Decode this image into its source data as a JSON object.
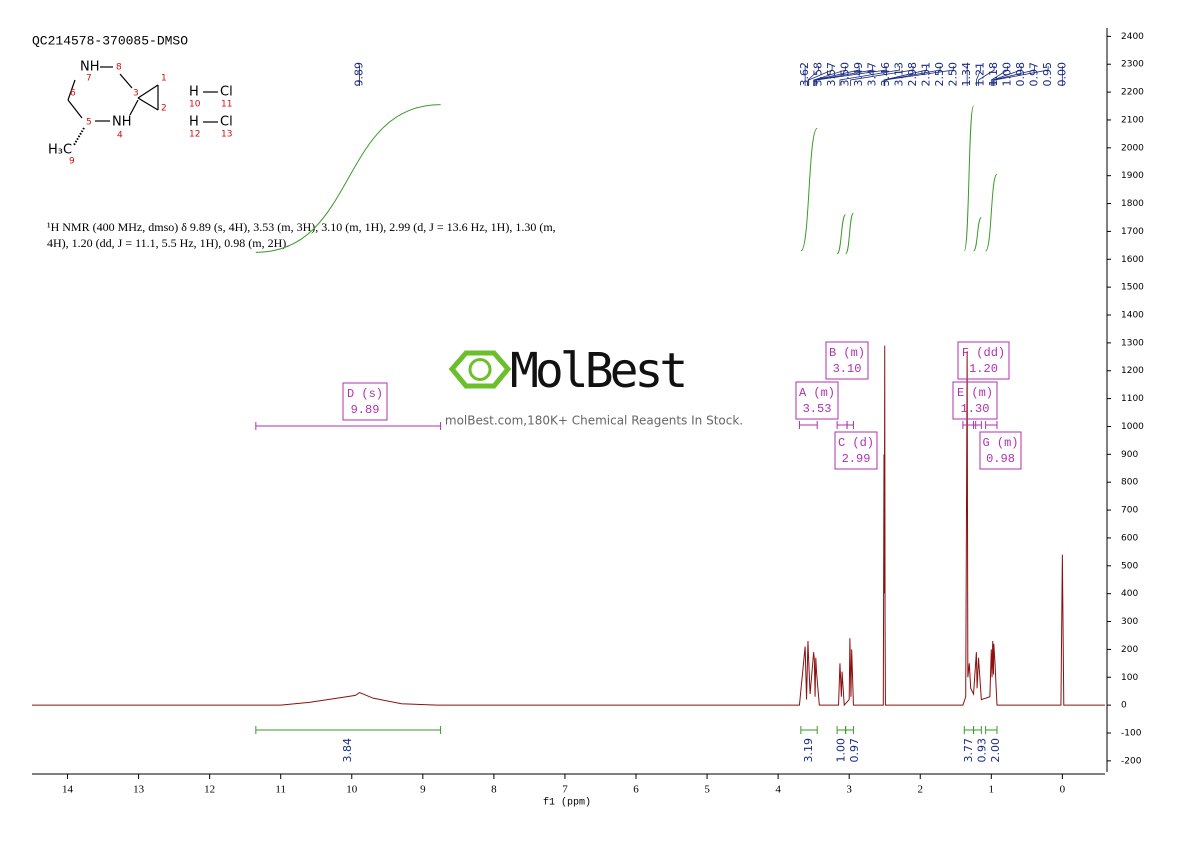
{
  "title": "QC214578-370085-DMSO",
  "description": [
    "¹H NMR (400 MHz, dmso) δ 9.89 (s, 4H), 3.53 (m, 3H), 3.10 (m, 1H), 2.99 (d, J = 13.6 Hz, 1H), 1.30 (m,",
    "4H), 1.20 (dd, J = 11.1, 5.5 Hz, 1H), 0.98 (m, 2H)."
  ],
  "structure": {
    "labels": [
      "NH",
      "8",
      "7",
      "6",
      "3",
      "1",
      "2",
      "5",
      "NH",
      "4",
      "H₃C",
      "9",
      "H",
      "Cl",
      "10",
      "11",
      "H",
      "Cl",
      "12",
      "13"
    ]
  },
  "watermark": {
    "brand": "MolBest",
    "tagline": "molBest.com,180K+ Chemical Reagents In Stock."
  },
  "chart_data": {
    "type": "nmr",
    "x_label": "f1 (ppm)",
    "xlim": [
      14.5,
      -0.6
    ],
    "xticks": [
      14,
      13,
      12,
      11,
      10,
      9,
      8,
      7,
      6,
      5,
      4,
      3,
      2,
      1,
      0
    ],
    "ylim": [
      -240,
      2430
    ],
    "yticks": [
      -200,
      -100,
      0,
      100,
      200,
      300,
      400,
      500,
      600,
      700,
      800,
      900,
      1000,
      1100,
      1200,
      1300,
      1400,
      1500,
      1600,
      1700,
      1800,
      1900,
      2000,
      2100,
      2200,
      2300,
      2400
    ],
    "spectrum": {
      "color": "#8b1010",
      "x": [
        14.5,
        11.0,
        10.6,
        10.2,
        9.95,
        9.89,
        9.7,
        9.3,
        8.8,
        3.7,
        3.62,
        3.6,
        3.58,
        3.575,
        3.55,
        3.5,
        3.49,
        3.48,
        3.47,
        3.46,
        3.42,
        3.15,
        3.13,
        3.11,
        3.1,
        3.07,
        3.0,
        2.99,
        2.975,
        2.965,
        2.94,
        2.52,
        2.51,
        2.505,
        2.5,
        2.495,
        2.49,
        1.4,
        1.36,
        1.34,
        1.33,
        1.31,
        1.29,
        1.25,
        1.21,
        1.2,
        1.18,
        1.14,
        1.02,
        1.0,
        0.99,
        0.98,
        0.97,
        0.965,
        0.95,
        0.92,
        0.02,
        0.0,
        -0.02,
        -0.6
      ],
      "values": [
        0,
        0,
        10,
        25,
        35,
        45,
        25,
        5,
        0,
        0,
        210,
        20,
        230,
        190,
        40,
        190,
        160,
        30,
        170,
        120,
        0,
        0,
        150,
        30,
        120,
        0,
        20,
        240,
        30,
        200,
        0,
        0,
        900,
        400,
        1290,
        300,
        0,
        0,
        30,
        1270,
        100,
        150,
        60,
        40,
        190,
        60,
        170,
        20,
        30,
        200,
        100,
        230,
        110,
        220,
        160,
        0,
        0,
        540,
        0,
        0
      ]
    },
    "peak_labels": [
      9.89,
      3.62,
      3.58,
      3.57,
      {
        "value": 3.5,
        "label": "3.50"
      },
      3.49,
      3.47,
      3.46,
      3.13,
      2.98,
      2.51,
      {
        "value": 2.5,
        "label": "2.50"
      },
      {
        "value": 2.5,
        "label": "2.50"
      },
      1.34,
      1.21,
      1.18,
      {
        "value": 1,
        "label": "1.00"
      },
      0.98,
      0.97,
      0.95,
      {
        "value": 0,
        "label": "0.00"
      }
    ],
    "integrals": [
      {
        "value": 3.84,
        "range": [
          11.35,
          8.75
        ],
        "curve": [
          1625,
          2155
        ]
      },
      {
        "value": 3.19,
        "range": [
          3.68,
          3.45
        ],
        "curve": [
          1630,
          2070
        ]
      },
      {
        "value": {
          "value": 1,
          "label": "1.00"
        },
        "range": [
          3.17,
          3.05
        ],
        "curve": [
          1620,
          1760
        ]
      },
      {
        "value": 0.97,
        "range": [
          3.05,
          2.94
        ],
        "curve": [
          1620,
          1765
        ]
      },
      {
        "value": 3.77,
        "range": [
          1.38,
          1.25
        ],
        "curve": [
          1630,
          2150
        ]
      },
      {
        "value": 0.93,
        "range": [
          1.25,
          1.14
        ],
        "curve": [
          1630,
          1750
        ]
      },
      {
        "value": {
          "value": 2,
          "label": "2.00"
        },
        "range": [
          1.08,
          0.92
        ],
        "curve": [
          1630,
          1905
        ]
      }
    ],
    "integral_color": "#3a9a2a",
    "multiplets": [
      {
        "label": "D (s)",
        "shift": 9.89,
        "range": [
          11.35,
          8.75
        ]
      },
      {
        "label": "A (m)",
        "shift": 3.53,
        "range": [
          3.7,
          3.45
        ]
      },
      {
        "label": "B (m)",
        "shift": {
          "value": 3.1,
          "label": "3.10"
        },
        "range": [
          3.17,
          3.03
        ]
      },
      {
        "label": "C (d)",
        "shift": 2.99,
        "range": [
          3.03,
          2.94
        ]
      },
      {
        "label": "F (dd)",
        "shift": {
          "value": 1.2,
          "label": "1.20"
        },
        "range": [
          1.25,
          1.14
        ]
      },
      {
        "label": "E (m)",
        "shift": {
          "value": 1.3,
          "label": "1.30"
        },
        "range": [
          1.4,
          1.22
        ]
      },
      {
        "label": "G (m)",
        "shift": 0.98,
        "range": [
          1.08,
          0.92
        ]
      }
    ],
    "multiplet_color": "#b030b0",
    "label_color": "#1a2a80"
  }
}
